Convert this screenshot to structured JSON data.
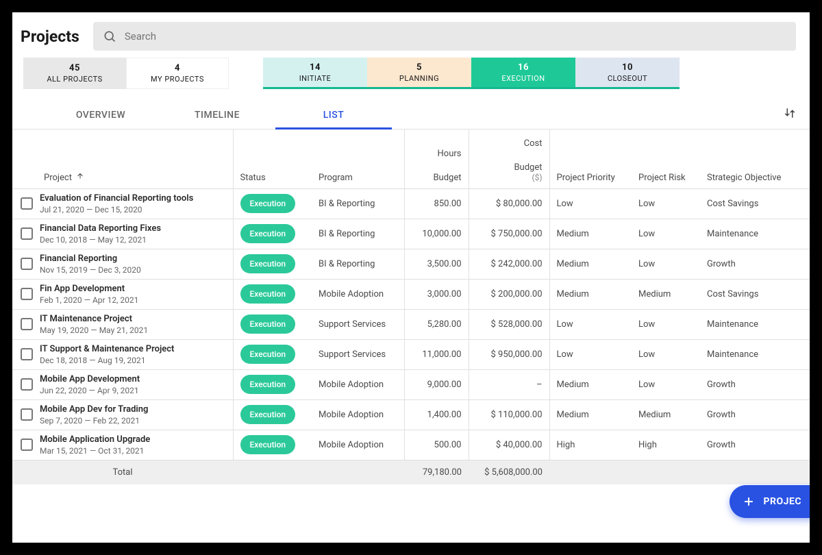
{
  "page": {
    "title": "Projects"
  },
  "search": {
    "placeholder": "Search"
  },
  "filters": {
    "all": {
      "count": "45",
      "label": "ALL PROJECTS"
    },
    "my": {
      "count": "4",
      "label": "MY PROJECTS"
    },
    "initiate": {
      "count": "14",
      "label": "INITIATE"
    },
    "planning": {
      "count": "5",
      "label": "PLANNING"
    },
    "execution": {
      "count": "16",
      "label": "EXECUTION"
    },
    "closeout": {
      "count": "10",
      "label": "CLOSEOUT"
    }
  },
  "viewTabs": {
    "overview": "OVERVIEW",
    "timeline": "TIMELINE",
    "list": "LIST",
    "active": "list"
  },
  "columns": {
    "project": "Project",
    "status": "Status",
    "program": "Program",
    "hours_top": "Hours",
    "hours_sub": "Budget",
    "cost_top": "Cost",
    "cost_sub": "Budget",
    "cost_currency": "($)",
    "priority": "Project Priority",
    "risk": "Project Risk",
    "objective": "Strategic Objective"
  },
  "rows": [
    {
      "name": "Evaluation of Financial Reporting tools",
      "dates": "Jul 21, 2020 — Dec 15, 2020",
      "status": "Execution",
      "program": "BI & Reporting",
      "hours": "850.00",
      "cost": "$ 80,000.00",
      "priority": "Low",
      "risk": "Low",
      "objective": "Cost Savings"
    },
    {
      "name": "Financial Data Reporting Fixes",
      "dates": "Dec 10, 2018 — May 12, 2021",
      "status": "Execution",
      "program": "BI & Reporting",
      "hours": "10,000.00",
      "cost": "$ 750,000.00",
      "priority": "Medium",
      "risk": "Low",
      "objective": "Maintenance"
    },
    {
      "name": "Financial Reporting",
      "dates": "Nov 15, 2019 — Dec 3, 2020",
      "status": "Execution",
      "program": "BI & Reporting",
      "hours": "3,500.00",
      "cost": "$ 242,000.00",
      "priority": "Medium",
      "risk": "Low",
      "objective": "Growth"
    },
    {
      "name": "Fin App Development",
      "dates": "Feb 1, 2020 — Apr 12, 2021",
      "status": "Execution",
      "program": "Mobile Adoption",
      "hours": "3,000.00",
      "cost": "$ 200,000.00",
      "priority": "Medium",
      "risk": "Medium",
      "objective": "Cost Savings"
    },
    {
      "name": "IT Maintenance Project",
      "dates": "May 19, 2020 — May 21, 2021",
      "status": "Execution",
      "program": "Support Services",
      "hours": "5,280.00",
      "cost": "$ 528,000.00",
      "priority": "Low",
      "risk": "Low",
      "objective": "Maintenance"
    },
    {
      "name": "IT Support & Maintenance Project",
      "dates": "Dec 18, 2018 — Aug 19, 2021",
      "status": "Execution",
      "program": "Support Services",
      "hours": "11,000.00",
      "cost": "$ 950,000.00",
      "priority": "Low",
      "risk": "Low",
      "objective": "Maintenance"
    },
    {
      "name": "Mobile App Development",
      "dates": "Jun 22, 2020 — Apr 9, 2021",
      "status": "Execution",
      "program": "Mobile Adoption",
      "hours": "9,000.00",
      "cost": "–",
      "priority": "Medium",
      "risk": "Low",
      "objective": "Growth"
    },
    {
      "name": "Mobile App Dev for Trading",
      "dates": "Sep 7, 2020 — Feb 22, 2021",
      "status": "Execution",
      "program": "Mobile Adoption",
      "hours": "1,400.00",
      "cost": "$ 110,000.00",
      "priority": "Medium",
      "risk": "Medium",
      "objective": "Growth"
    },
    {
      "name": "Mobile Application Upgrade",
      "dates": "Mar 15, 2021 — Oct 31, 2021",
      "status": "Execution",
      "program": "Mobile Adoption",
      "hours": "500.00",
      "cost": "$ 40,000.00",
      "priority": "High",
      "risk": "High",
      "objective": "Growth"
    }
  ],
  "totals": {
    "label": "Total",
    "hours": "79,180.00",
    "cost": "$ 5,608,000.00"
  },
  "fab": {
    "label": "PROJEC"
  },
  "colors": {
    "accent_blue": "#2952e3",
    "status_green": "#2bc999",
    "filter_initiate_bg": "#d4f1f0",
    "filter_planning_bg": "#fce7cf",
    "filter_execution_bg": "#1ec997",
    "filter_closeout_bg": "#dde5f0"
  }
}
